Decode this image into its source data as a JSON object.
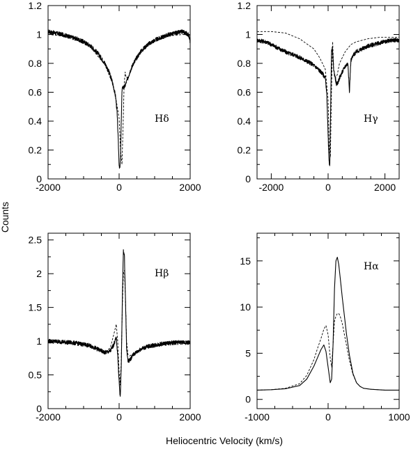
{
  "figure": {
    "ylabel": "Counts",
    "xlabel": "Heliocentric Velocity (km/s)"
  },
  "chart_data": [
    {
      "type": "line",
      "label": "Hδ",
      "xlim": [
        -2000,
        2000
      ],
      "ylim": [
        0,
        1.2
      ],
      "xticks": [
        -2000,
        0,
        2000
      ],
      "yticks": [
        0,
        0.2,
        0.4,
        0.6,
        0.8,
        1,
        1.2
      ],
      "xtick_labels": [
        "-2000",
        "0",
        "2000"
      ],
      "ytick_labels": [
        "0",
        "0.2",
        "0.4",
        "0.6",
        "0.8",
        "1",
        "1.2"
      ],
      "series": [
        {
          "style": "solid",
          "noisy": true,
          "x": [
            -2000,
            -1800,
            -1600,
            -1400,
            -1200,
            -1000,
            -800,
            -600,
            -400,
            -300,
            -200,
            -150,
            -100,
            -60,
            -30,
            0,
            20,
            40,
            60,
            80,
            100,
            130,
            160,
            200,
            250,
            300,
            400,
            600,
            800,
            1000,
            1200,
            1400,
            1600,
            1800,
            1950,
            2000
          ],
          "y": [
            1.02,
            1.01,
            1.0,
            0.985,
            0.97,
            0.95,
            0.92,
            0.87,
            0.8,
            0.75,
            0.68,
            0.63,
            0.57,
            0.47,
            0.3,
            0.1,
            0.07,
            0.15,
            0.4,
            0.6,
            0.64,
            0.63,
            0.64,
            0.67,
            0.7,
            0.74,
            0.8,
            0.88,
            0.93,
            0.96,
            0.98,
            1.0,
            1.01,
            1.02,
            1.0,
            0.95
          ]
        },
        {
          "style": "dashed",
          "noisy": false,
          "x": [
            -2000,
            -1600,
            -1200,
            -800,
            -400,
            -200,
            -100,
            0,
            40,
            80,
            110,
            140,
            170,
            200,
            250,
            300,
            400,
            600,
            800,
            1000,
            1400,
            1800,
            2000
          ],
          "y": [
            1.0,
            0.99,
            0.96,
            0.91,
            0.79,
            0.67,
            0.57,
            0.42,
            0.2,
            0.1,
            0.35,
            0.65,
            0.74,
            0.7,
            0.7,
            0.73,
            0.79,
            0.87,
            0.92,
            0.95,
            0.99,
            1.0,
            0.99
          ]
        }
      ]
    },
    {
      "type": "line",
      "label": "Hγ",
      "xlim": [
        -2500,
        2500
      ],
      "ylim": [
        0,
        1.2
      ],
      "xticks": [
        -2000,
        0,
        2000
      ],
      "yticks": [
        0,
        0.2,
        0.4,
        0.6,
        0.8,
        1,
        1.2
      ],
      "xtick_labels": [
        "-2000",
        "0",
        "2000"
      ],
      "ytick_labels": [
        "0",
        "0.2",
        "0.4",
        "0.6",
        "0.8",
        "1",
        "1.2"
      ],
      "series": [
        {
          "style": "solid",
          "noisy": true,
          "x": [
            -2500,
            -2200,
            -2000,
            -1800,
            -1600,
            -1400,
            -1200,
            -1000,
            -800,
            -600,
            -400,
            -200,
            -100,
            -50,
            0,
            30,
            60,
            90,
            120,
            150,
            200,
            250,
            300,
            350,
            400,
            500,
            600,
            700,
            750,
            800,
            850,
            900,
            1000,
            1200,
            1400,
            1600,
            1800,
            2000,
            2200,
            2500
          ],
          "y": [
            0.96,
            0.95,
            0.93,
            0.91,
            0.89,
            0.87,
            0.86,
            0.84,
            0.82,
            0.8,
            0.77,
            0.73,
            0.7,
            0.6,
            0.3,
            0.12,
            0.1,
            0.5,
            0.88,
            0.9,
            0.75,
            0.7,
            0.65,
            0.67,
            0.7,
            0.74,
            0.78,
            0.8,
            0.6,
            0.82,
            0.84,
            0.86,
            0.88,
            0.9,
            0.92,
            0.93,
            0.94,
            0.95,
            0.96,
            0.96
          ]
        },
        {
          "style": "dashed",
          "noisy": false,
          "x": [
            -2500,
            -2000,
            -1500,
            -1000,
            -500,
            -300,
            -100,
            0,
            40,
            80,
            120,
            160,
            200,
            260,
            320,
            400,
            600,
            800,
            1000,
            1400,
            1800,
            2200,
            2500
          ],
          "y": [
            1.02,
            1.02,
            1.01,
            0.97,
            0.9,
            0.84,
            0.76,
            0.55,
            0.2,
            0.15,
            0.62,
            0.95,
            0.75,
            0.7,
            0.72,
            0.8,
            0.88,
            0.93,
            0.95,
            0.97,
            0.98,
            0.98,
            0.98
          ]
        }
      ]
    },
    {
      "type": "line",
      "label": "Hβ",
      "xlim": [
        -2000,
        2000
      ],
      "ylim": [
        0,
        2.6
      ],
      "xticks": [
        -2000,
        0,
        2000
      ],
      "yticks": [
        0,
        0.5,
        1,
        1.5,
        2,
        2.5
      ],
      "xtick_labels": [
        "-2000",
        "0",
        "2000"
      ],
      "ytick_labels": [
        "0",
        "0.5",
        "1",
        "1.5",
        "2",
        "2.5"
      ],
      "series": [
        {
          "style": "solid",
          "noisy": true,
          "x": [
            -2000,
            -1600,
            -1200,
            -800,
            -600,
            -400,
            -250,
            -150,
            -80,
            -40,
            0,
            30,
            60,
            90,
            120,
            150,
            180,
            210,
            250,
            300,
            400,
            600,
            800,
            1200,
            1600,
            2000
          ],
          "y": [
            1.0,
            0.99,
            0.97,
            0.93,
            0.88,
            0.83,
            0.85,
            0.95,
            1.05,
            0.8,
            0.4,
            0.15,
            0.6,
            1.6,
            2.35,
            2.25,
            1.6,
            0.9,
            0.7,
            0.72,
            0.8,
            0.88,
            0.92,
            0.96,
            0.98,
            0.98
          ]
        },
        {
          "style": "dashed",
          "noisy": false,
          "x": [
            -2000,
            -1600,
            -1200,
            -800,
            -600,
            -400,
            -250,
            -150,
            -80,
            -40,
            0,
            30,
            60,
            90,
            120,
            150,
            180,
            210,
            250,
            300,
            400,
            600,
            800,
            1200,
            1600,
            2000
          ],
          "y": [
            1.0,
            0.99,
            0.97,
            0.93,
            0.88,
            0.84,
            0.9,
            1.1,
            1.25,
            1.0,
            0.55,
            0.35,
            0.7,
            1.5,
            2.0,
            2.05,
            1.6,
            1.0,
            0.8,
            0.78,
            0.82,
            0.88,
            0.92,
            0.96,
            0.98,
            0.98
          ]
        }
      ]
    },
    {
      "type": "line",
      "label": "Hα",
      "xlim": [
        -1000,
        1000
      ],
      "ylim": [
        -1,
        18
      ],
      "xticks": [
        -1000,
        0,
        1000
      ],
      "yticks": [
        0,
        5,
        10,
        15
      ],
      "xtick_labels": [
        "-1000",
        "0",
        "1000"
      ],
      "ytick_labels": [
        "0",
        "5",
        "10",
        "15"
      ],
      "series": [
        {
          "style": "solid",
          "noisy": false,
          "x": [
            -1000,
            -800,
            -600,
            -400,
            -300,
            -200,
            -150,
            -100,
            -60,
            -30,
            0,
            30,
            50,
            70,
            90,
            110,
            130,
            150,
            170,
            200,
            230,
            260,
            300,
            350,
            400,
            450,
            500,
            600,
            700,
            800,
            1000
          ],
          "y": [
            1.0,
            1.05,
            1.15,
            1.5,
            2.2,
            3.6,
            4.5,
            5.4,
            5.9,
            5.2,
            3.5,
            1.8,
            2.2,
            6.0,
            12.0,
            15.0,
            15.4,
            14.6,
            13.2,
            11.0,
            9.0,
            7.0,
            4.8,
            2.8,
            1.8,
            1.4,
            1.2,
            1.1,
            1.05,
            1.0,
            1.0
          ]
        },
        {
          "style": "dashed",
          "noisy": false,
          "x": [
            -1000,
            -800,
            -600,
            -400,
            -300,
            -200,
            -150,
            -100,
            -60,
            -30,
            0,
            30,
            50,
            70,
            90,
            110,
            130,
            150,
            170,
            200,
            230,
            260,
            300,
            350,
            400,
            450,
            500,
            600,
            700,
            800,
            1000
          ],
          "y": [
            1.0,
            1.05,
            1.2,
            1.7,
            2.6,
            4.3,
            5.5,
            6.6,
            7.6,
            8.0,
            7.0,
            4.5,
            3.5,
            6.0,
            8.5,
            9.0,
            9.3,
            9.3,
            9.0,
            8.2,
            7.0,
            5.8,
            4.2,
            2.7,
            1.8,
            1.4,
            1.2,
            1.1,
            1.05,
            1.0,
            1.0
          ]
        }
      ]
    }
  ]
}
